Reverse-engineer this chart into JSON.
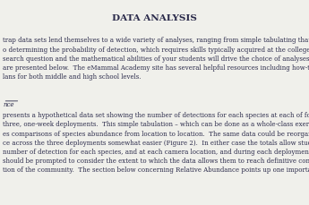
{
  "title": "DATA ANALYSIS",
  "bg_color": "#f0f0eb",
  "text_color": "#2a2a4a",
  "title_fontsize": 7.5,
  "body_fontsize": 5.0,
  "paragraph1": "trap data sets lend themselves to a wide variety of analyses, ranging from simple tabulating that grade school students c\no determining the probability of detection, which requires skills typically acquired at the college level or beyond.  The s\nsearch question and the mathematical abilities of your students will drive the choice of analyses.  Examples of commo\nare presented below.  The eMammal Academy site has several helpful resources including how-to videos and fully-de\nlans for both middle and high school levels.",
  "section_label": "nce",
  "paragraph2": "presents a hypothetical data set showing the number of detections for each species at each of four camera locations du\nthree, one-week deployments.  This simple tabulation – which can be done as a whole-class exercise at the front of the\nes comparisons of species abundance from location to location.  The same data could be reorganized to make comparis\nce across the three deployments somewhat easier (Figure 2).  In either case the totals allow students to determine with\nnumber of detection for each species, and at each camera location, and during each deployment.  In discussing their re\nshould be prompted to consider the extent to which the data allows them to reach definitive conclusions about the\ntion of the community.  The section below concerning Relative Abundance points up one important caveat."
}
